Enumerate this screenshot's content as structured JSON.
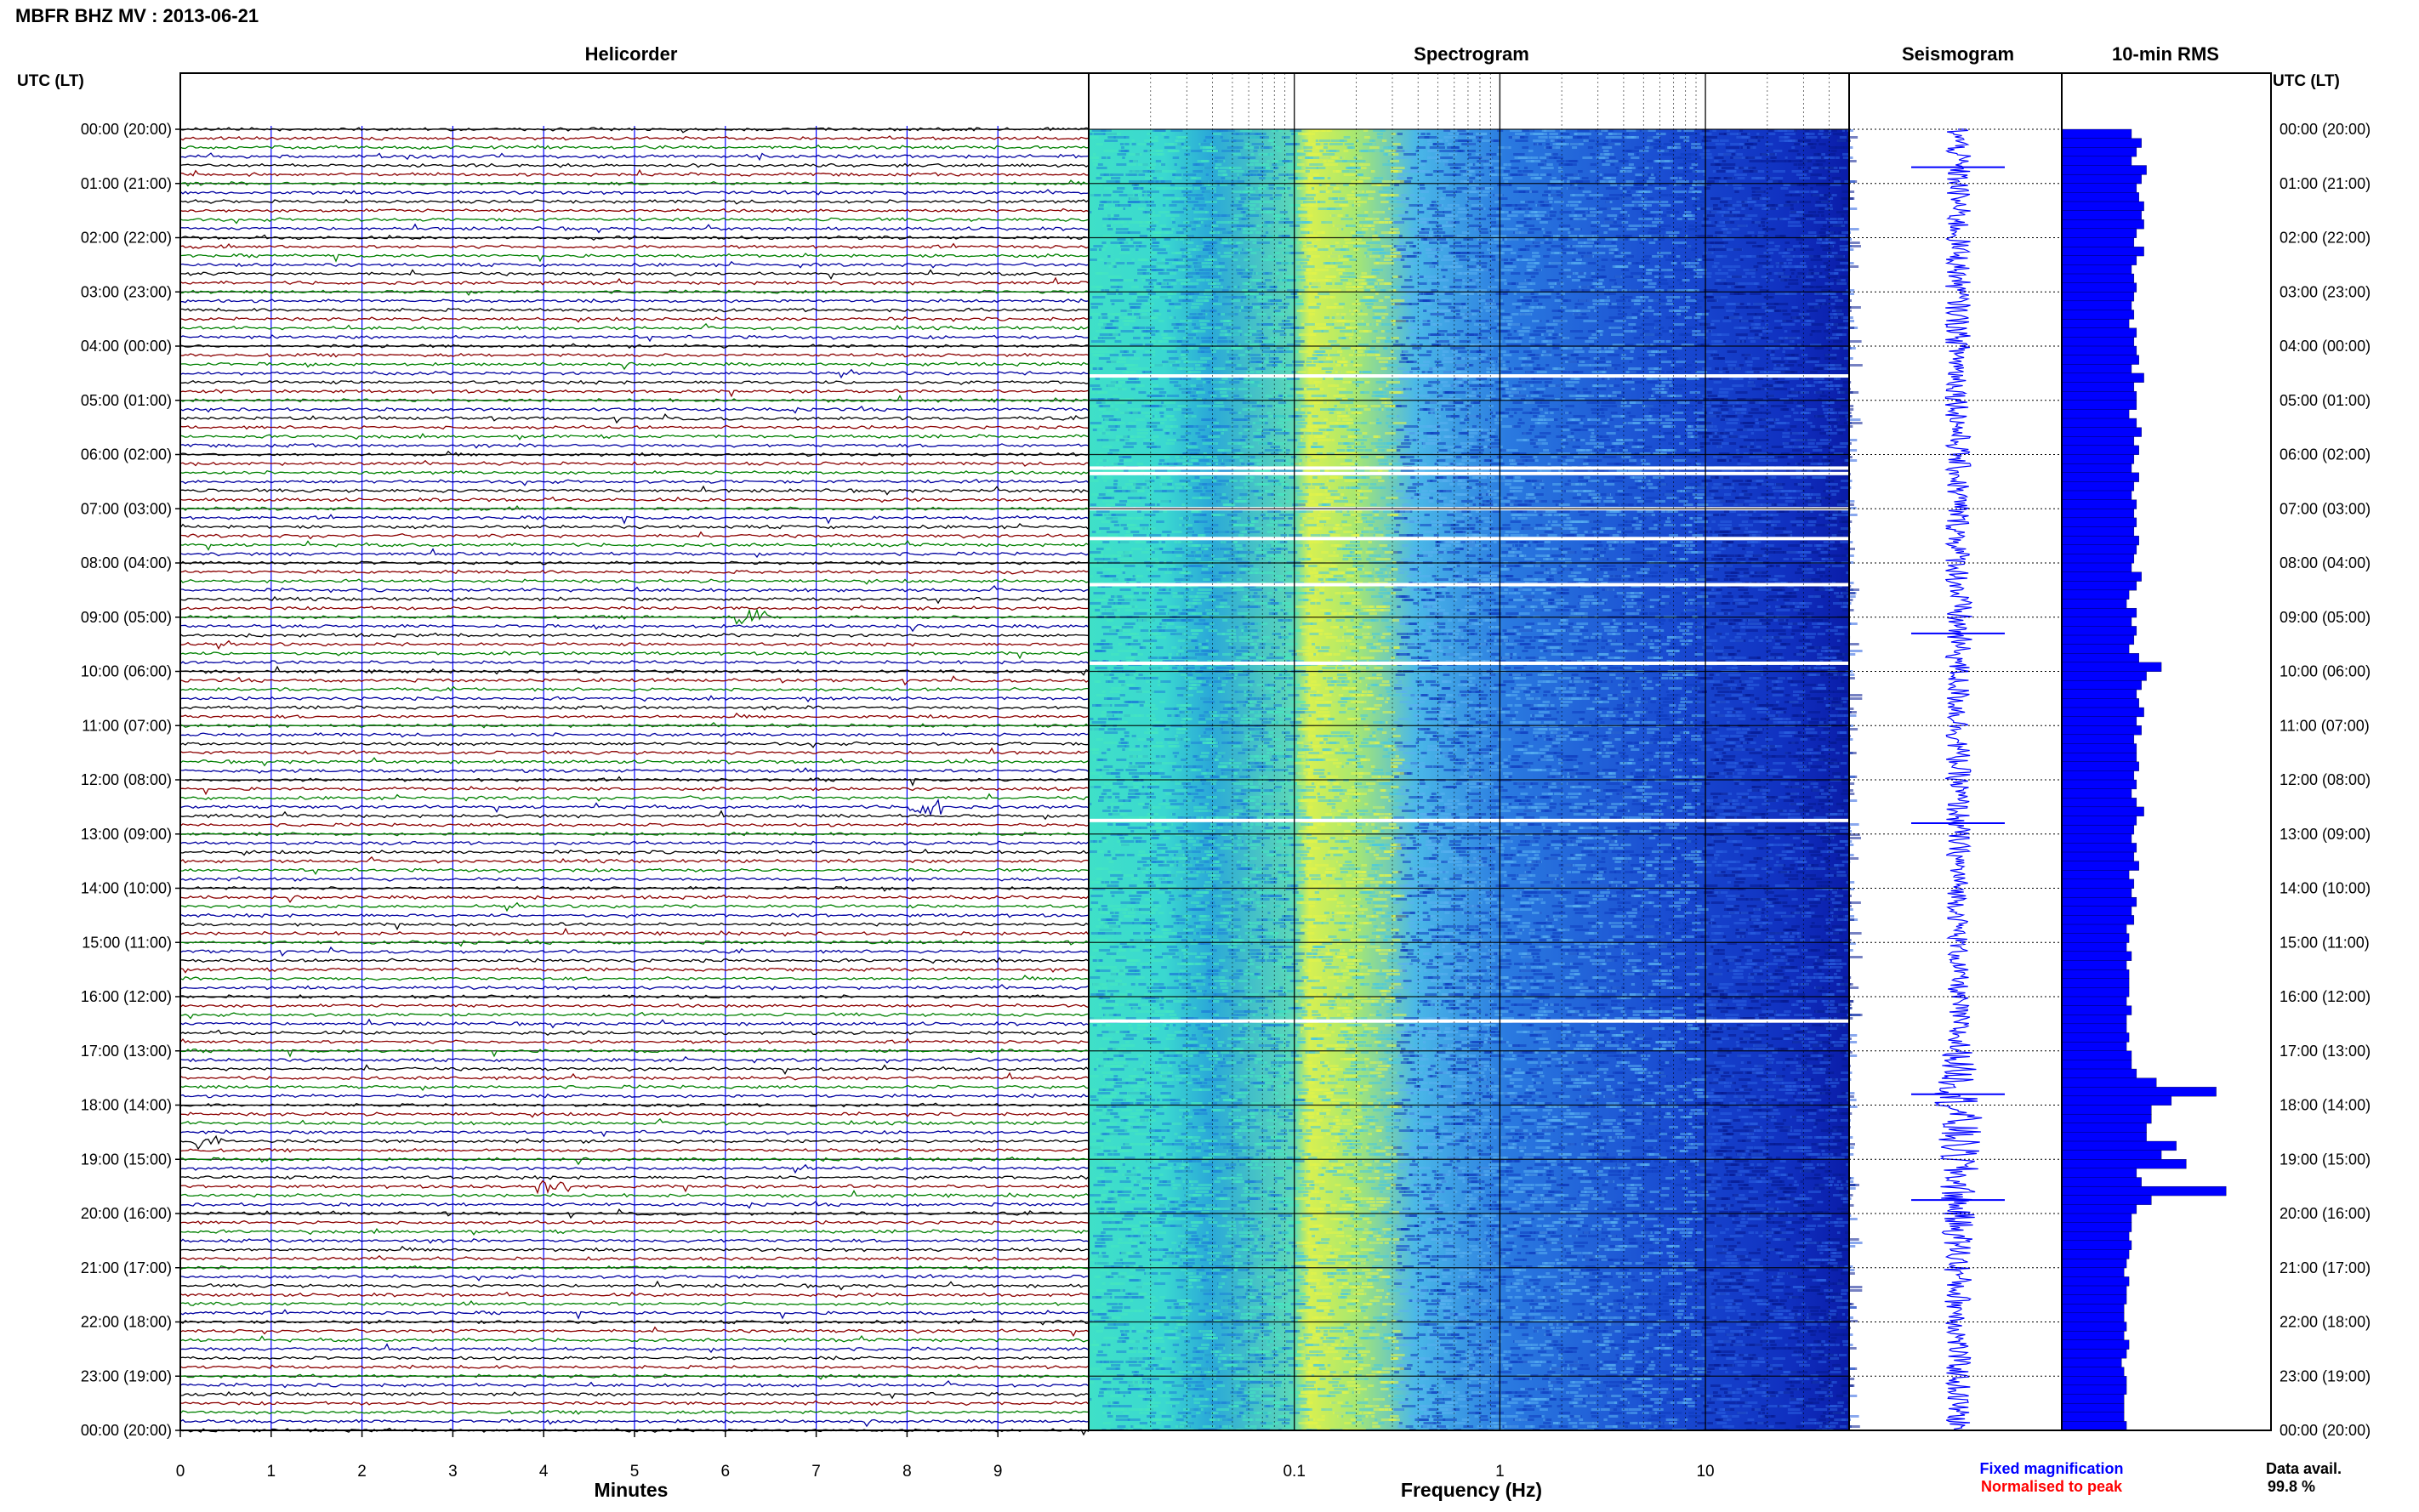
{
  "header": {
    "station_title": "MBFR BHZ MV : 2013-06-21"
  },
  "panels": {
    "helicorder_title": "Helicorder",
    "spectrogram_title": "Spectrogram",
    "seismogram_title": "Seismogram",
    "rms_title": "10-min RMS",
    "left_axis_header": "UTC (LT)",
    "right_axis_header": "UTC (LT)",
    "helicorder_xlabel": "Minutes",
    "spectrogram_xlabel": "Frequency (Hz)"
  },
  "legend": {
    "fixed": "Fixed magnification",
    "fixed_color": "#0000ff",
    "normalised": "Normalised to peak",
    "normalised_color": "#ff0000"
  },
  "data_availability": {
    "label": "Data avail.",
    "value": "99.8 %"
  },
  "colors": {
    "trace_cycle": [
      "#000000",
      "#8b0000",
      "#008000",
      "#0000a0"
    ],
    "rms_bar": "#0000ff",
    "seismogram": "#0000ff"
  },
  "chart_data": [
    {
      "type": "line",
      "name": "helicorder",
      "title": "Helicorder",
      "xlabel": "Minutes",
      "xlim": [
        0,
        10
      ],
      "x_ticks": [
        "0",
        "1",
        "2",
        "3",
        "4",
        "5",
        "6",
        "7",
        "8",
        "9"
      ],
      "rows_per_hour": 6,
      "row_count": 144,
      "y_tick_labels": [
        "00:00 (20:00)",
        "01:00 (21:00)",
        "02:00 (22:00)",
        "03:00 (23:00)",
        "04:00 (00:00)",
        "05:00 (01:00)",
        "06:00 (02:00)",
        "07:00 (03:00)",
        "08:00 (04:00)",
        "09:00 (05:00)",
        "10:00 (06:00)",
        "11:00 (07:00)",
        "12:00 (08:00)",
        "13:00 (09:00)",
        "14:00 (10:00)",
        "15:00 (11:00)",
        "16:00 (12:00)",
        "17:00 (13:00)",
        "18:00 (14:00)",
        "19:00 (15:00)",
        "20:00 (16:00)",
        "21:00 (17:00)",
        "22:00 (18:00)",
        "23:00 (19:00)",
        "00:00 (20:00)"
      ],
      "notable_events": [
        {
          "row": 54,
          "minute": 6.3
        },
        {
          "row": 75,
          "minute": 8.2
        },
        {
          "row": 117,
          "minute": 4.1
        },
        {
          "row": 112,
          "minute": 0.3
        }
      ]
    },
    {
      "type": "heatmap",
      "name": "spectrogram",
      "title": "Spectrogram",
      "xlabel": "Frequency (Hz)",
      "x_scale": "log",
      "xlim": [
        0.01,
        50
      ],
      "x_ticks": [
        "0.1",
        "1",
        "10"
      ],
      "gaps_hours": [
        4.55,
        6.25,
        6.35,
        7.0,
        7.55,
        8.4,
        9.85,
        12.75,
        16.45
      ]
    },
    {
      "type": "line",
      "name": "seismogram",
      "title": "Seismogram",
      "hours": [
        0,
        1,
        2,
        3,
        4,
        5,
        6,
        7,
        8,
        9,
        10,
        11,
        12,
        13,
        14,
        15,
        16,
        17,
        18,
        19,
        20,
        21,
        22,
        23,
        24
      ],
      "amplitude": [
        0.3,
        0.3,
        0.3,
        0.3,
        0.3,
        0.3,
        0.3,
        0.3,
        0.3,
        0.35,
        0.3,
        0.3,
        0.3,
        0.3,
        0.25,
        0.25,
        0.25,
        0.35,
        0.6,
        0.5,
        0.4,
        0.35,
        0.3,
        0.3,
        0.3
      ],
      "spikes_hours": [
        0.7,
        9.3,
        12.8,
        17.8,
        19.75
      ]
    },
    {
      "type": "bar",
      "name": "rms",
      "title": "10-min RMS",
      "orientation": "horizontal",
      "values": [
        28,
        32,
        30,
        28,
        34,
        32,
        30,
        31,
        33,
        32,
        33,
        30,
        29,
        33,
        30,
        28,
        29,
        30,
        29,
        28,
        29,
        27,
        30,
        29,
        30,
        31,
        28,
        33,
        29,
        30,
        30,
        27,
        30,
        32,
        29,
        31,
        29,
        28,
        31,
        29,
        28,
        30,
        29,
        30,
        29,
        31,
        30,
        29,
        28,
        32,
        30,
        27,
        26,
        30,
        28,
        30,
        29,
        27,
        31,
        40,
        34,
        32,
        30,
        31,
        33,
        30,
        32,
        29,
        30,
        30,
        31,
        29,
        30,
        28,
        30,
        33,
        30,
        29,
        28,
        30,
        29,
        31,
        27,
        29,
        28,
        30,
        28,
        29,
        26,
        27,
        26,
        28,
        26,
        27,
        27,
        27,
        26,
        28,
        26,
        26,
        27,
        26,
        28,
        28,
        30,
        38,
        62,
        44,
        36,
        36,
        34,
        34,
        46,
        40,
        50,
        30,
        32,
        66,
        36,
        30,
        28,
        28,
        27,
        28,
        27,
        26,
        25,
        27,
        26,
        26,
        25,
        25,
        26,
        25,
        27,
        26,
        24,
        25,
        26,
        26,
        25,
        25,
        25,
        26
      ]
    }
  ]
}
